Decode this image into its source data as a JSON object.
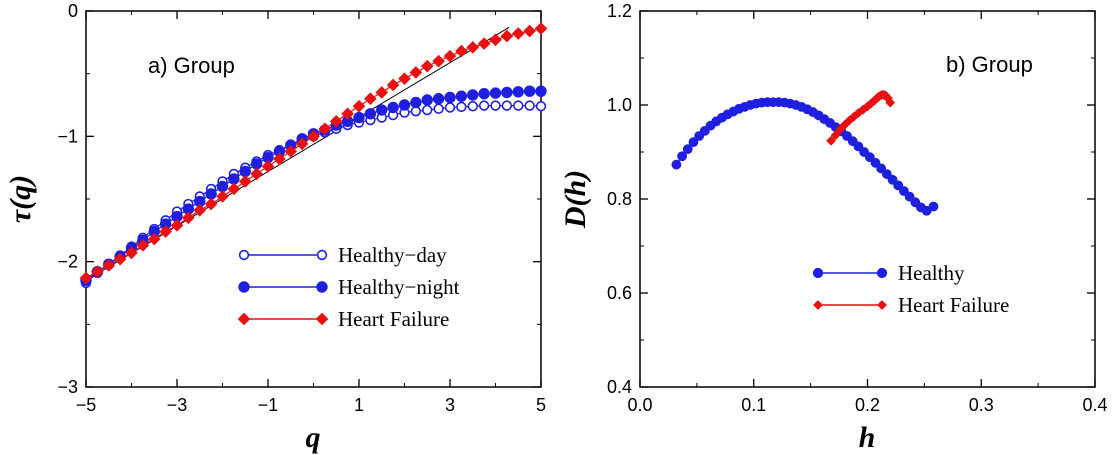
{
  "chart_data": [
    {
      "type": "scatter",
      "annotation": "a) Group",
      "xlabel": "q",
      "ylabel": "τ(q)",
      "xlim": [
        -5,
        5
      ],
      "ylim": [
        -3,
        0
      ],
      "xticks": [
        "−5",
        "−3",
        "−1",
        "1",
        "3",
        "5"
      ],
      "yticks": [
        "0",
        "−1",
        "−2",
        "−3"
      ],
      "legend_position": "bottom-right",
      "reference_line": {
        "x": [
          -5,
          4.3
        ],
        "y": [
          -2.15,
          -0.13
        ]
      },
      "series": [
        {
          "name": "Healthy−day",
          "marker": "open-circle",
          "color": "#1f1fe0",
          "x": [
            -5,
            -4.75,
            -4.5,
            -4.25,
            -4,
            -3.75,
            -3.5,
            -3.25,
            -3,
            -2.75,
            -2.5,
            -2.25,
            -2,
            -1.75,
            -1.5,
            -1.25,
            -1,
            -0.75,
            -0.5,
            -0.25,
            0,
            0.25,
            0.5,
            0.75,
            1,
            1.25,
            1.5,
            1.75,
            2,
            2.25,
            2.5,
            2.75,
            3,
            3.25,
            3.5,
            3.75,
            4,
            4.25,
            4.5,
            4.75,
            5
          ],
          "y": [
            -2.17,
            -2.09,
            -2.02,
            -1.95,
            -1.88,
            -1.81,
            -1.74,
            -1.67,
            -1.6,
            -1.54,
            -1.48,
            -1.42,
            -1.36,
            -1.3,
            -1.25,
            -1.2,
            -1.15,
            -1.11,
            -1.07,
            -1.03,
            -1.0,
            -0.97,
            -0.94,
            -0.91,
            -0.89,
            -0.87,
            -0.85,
            -0.83,
            -0.81,
            -0.8,
            -0.79,
            -0.78,
            -0.77,
            -0.765,
            -0.76,
            -0.755,
            -0.755,
            -0.755,
            -0.755,
            -0.755,
            -0.76
          ]
        },
        {
          "name": "Healthy−night",
          "marker": "filled-circle",
          "color": "#1f1fe0",
          "x": [
            -5,
            -4.75,
            -4.5,
            -4.25,
            -4,
            -3.75,
            -3.5,
            -3.25,
            -3,
            -2.75,
            -2.5,
            -2.25,
            -2,
            -1.75,
            -1.5,
            -1.25,
            -1,
            -0.75,
            -0.5,
            -0.25,
            0,
            0.25,
            0.5,
            0.75,
            1,
            1.25,
            1.5,
            1.75,
            2,
            2.25,
            2.5,
            2.75,
            3,
            3.25,
            3.5,
            3.75,
            4,
            4.25,
            4.5,
            4.75,
            5
          ],
          "y": [
            -2.15,
            -2.08,
            -2.02,
            -1.96,
            -1.89,
            -1.83,
            -1.76,
            -1.7,
            -1.64,
            -1.58,
            -1.52,
            -1.46,
            -1.4,
            -1.34,
            -1.28,
            -1.22,
            -1.17,
            -1.12,
            -1.07,
            -1.02,
            -0.98,
            -0.95,
            -0.91,
            -0.88,
            -0.85,
            -0.82,
            -0.79,
            -0.77,
            -0.75,
            -0.73,
            -0.71,
            -0.7,
            -0.69,
            -0.68,
            -0.67,
            -0.66,
            -0.655,
            -0.65,
            -0.645,
            -0.64,
            -0.64
          ]
        },
        {
          "name": "Heart Failure",
          "marker": "diamond",
          "color": "#e81010",
          "x": [
            -5,
            -4.75,
            -4.5,
            -4.25,
            -4,
            -3.75,
            -3.5,
            -3.25,
            -3,
            -2.75,
            -2.5,
            -2.25,
            -2,
            -1.75,
            -1.5,
            -1.25,
            -1,
            -0.75,
            -0.5,
            -0.25,
            0,
            0.25,
            0.5,
            0.75,
            1,
            1.25,
            1.5,
            1.75,
            2,
            2.25,
            2.5,
            2.75,
            3,
            3.25,
            3.5,
            3.75,
            4,
            4.25,
            4.5,
            4.75,
            5
          ],
          "y": [
            -2.13,
            -2.08,
            -2.03,
            -1.98,
            -1.93,
            -1.87,
            -1.82,
            -1.76,
            -1.71,
            -1.65,
            -1.59,
            -1.54,
            -1.48,
            -1.42,
            -1.36,
            -1.3,
            -1.24,
            -1.18,
            -1.12,
            -1.06,
            -1.0,
            -0.94,
            -0.88,
            -0.82,
            -0.76,
            -0.7,
            -0.65,
            -0.59,
            -0.54,
            -0.49,
            -0.44,
            -0.4,
            -0.36,
            -0.32,
            -0.29,
            -0.26,
            -0.23,
            -0.2,
            -0.18,
            -0.16,
            -0.14
          ]
        }
      ]
    },
    {
      "type": "scatter",
      "annotation": "b) Group",
      "xlabel": "h",
      "ylabel": "D(h)",
      "xlim": [
        0,
        0.4
      ],
      "ylim": [
        0.4,
        1.2
      ],
      "xticks": [
        "0.0",
        "0.1",
        "0.2",
        "0.3",
        "0.4"
      ],
      "yticks": [
        "1.2",
        "1.0",
        "0.8",
        "0.6",
        "0.4"
      ],
      "legend_position": "bottom-right",
      "series": [
        {
          "name": "Healthy",
          "marker": "filled-circle",
          "color": "#1f1fe0",
          "x": [
            0.032,
            0.037,
            0.042,
            0.047,
            0.052,
            0.057,
            0.062,
            0.067,
            0.072,
            0.077,
            0.082,
            0.087,
            0.092,
            0.097,
            0.102,
            0.107,
            0.112,
            0.117,
            0.122,
            0.127,
            0.132,
            0.137,
            0.142,
            0.147,
            0.152,
            0.157,
            0.162,
            0.167,
            0.172,
            0.177,
            0.182,
            0.187,
            0.192,
            0.197,
            0.202,
            0.207,
            0.212,
            0.217,
            0.222,
            0.227,
            0.232,
            0.237,
            0.242,
            0.247,
            0.252,
            0.258
          ],
          "y": [
            0.873,
            0.891,
            0.906,
            0.921,
            0.934,
            0.945,
            0.956,
            0.965,
            0.973,
            0.98,
            0.986,
            0.992,
            0.996,
            1.0,
            1.003,
            1.005,
            1.006,
            1.006,
            1.006,
            1.005,
            1.003,
            1.0,
            0.996,
            0.991,
            0.985,
            0.978,
            0.97,
            0.962,
            0.953,
            0.944,
            0.934,
            0.923,
            0.912,
            0.9,
            0.889,
            0.877,
            0.865,
            0.853,
            0.841,
            0.829,
            0.817,
            0.805,
            0.793,
            0.782,
            0.775,
            0.784
          ]
        },
        {
          "name": "Heart Failure",
          "marker": "diamond",
          "color": "#e81010",
          "x": [
            0.168,
            0.172,
            0.176,
            0.18,
            0.184,
            0.188,
            0.192,
            0.196,
            0.2,
            0.203,
            0.206,
            0.208,
            0.21,
            0.212,
            0.214,
            0.216,
            0.218,
            0.22
          ],
          "y": [
            0.924,
            0.936,
            0.948,
            0.958,
            0.967,
            0.975,
            0.983,
            0.99,
            0.997,
            1.003,
            1.009,
            1.014,
            1.018,
            1.021,
            1.022,
            1.02,
            1.014,
            1.005
          ]
        }
      ]
    }
  ]
}
